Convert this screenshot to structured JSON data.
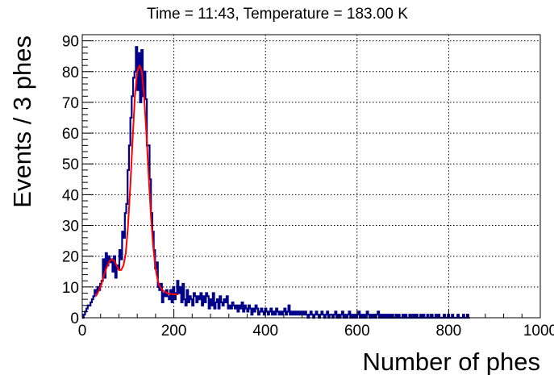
{
  "chart_data": {
    "type": "histogram",
    "title": "Time = 11:43, Temperature = 183.00 K",
    "xlabel": "Number of phes",
    "ylabel": "Events / 3 phes",
    "xlim": [
      0,
      1000
    ],
    "ylim": [
      0,
      92
    ],
    "x_ticks": [
      0,
      200,
      400,
      600,
      800,
      1000
    ],
    "x_tick_labels": [
      "0",
      "200",
      "400",
      "600",
      "800",
      "1000"
    ],
    "y_ticks": [
      0,
      10,
      20,
      30,
      40,
      50,
      60,
      70,
      80,
      90
    ],
    "y_tick_labels": [
      "0",
      "10",
      "20",
      "30",
      "40",
      "50",
      "60",
      "70",
      "80",
      "90"
    ],
    "grid": true,
    "bin_width": 3,
    "series": [
      {
        "kind": "histogram",
        "color": "#00008b",
        "bins": [
          [
            0,
            0
          ],
          [
            3,
            1
          ],
          [
            6,
            2
          ],
          [
            9,
            3
          ],
          [
            12,
            4
          ],
          [
            15,
            4
          ],
          [
            18,
            5
          ],
          [
            21,
            6
          ],
          [
            24,
            7
          ],
          [
            27,
            9
          ],
          [
            30,
            8
          ],
          [
            33,
            10
          ],
          [
            36,
            9
          ],
          [
            39,
            11
          ],
          [
            42,
            12
          ],
          [
            45,
            19
          ],
          [
            48,
            13
          ],
          [
            51,
            21
          ],
          [
            54,
            17
          ],
          [
            57,
            20
          ],
          [
            60,
            18
          ],
          [
            63,
            19
          ],
          [
            66,
            15
          ],
          [
            69,
            20
          ],
          [
            72,
            13
          ],
          [
            75,
            17
          ],
          [
            78,
            16
          ],
          [
            81,
            22
          ],
          [
            84,
            19
          ],
          [
            87,
            28
          ],
          [
            90,
            26
          ],
          [
            93,
            34
          ],
          [
            96,
            37
          ],
          [
            99,
            48
          ],
          [
            102,
            56
          ],
          [
            105,
            65
          ],
          [
            108,
            72
          ],
          [
            111,
            78
          ],
          [
            114,
            80
          ],
          [
            117,
            88
          ],
          [
            120,
            74
          ],
          [
            123,
            86
          ],
          [
            126,
            70
          ],
          [
            129,
            87
          ],
          [
            132,
            72
          ],
          [
            135,
            80
          ],
          [
            138,
            71
          ],
          [
            141,
            56
          ],
          [
            144,
            56
          ],
          [
            147,
            45
          ],
          [
            150,
            34
          ],
          [
            153,
            28
          ],
          [
            156,
            22
          ],
          [
            159,
            16
          ],
          [
            162,
            18
          ],
          [
            165,
            10
          ],
          [
            168,
            9
          ],
          [
            171,
            11
          ],
          [
            174,
            5
          ],
          [
            177,
            8
          ],
          [
            180,
            7
          ],
          [
            183,
            9
          ],
          [
            186,
            7
          ],
          [
            189,
            6
          ],
          [
            192,
            9
          ],
          [
            195,
            5
          ],
          [
            198,
            10
          ],
          [
            201,
            6
          ],
          [
            204,
            8
          ],
          [
            207,
            12
          ],
          [
            210,
            8
          ],
          [
            213,
            10
          ],
          [
            216,
            5
          ],
          [
            219,
            11
          ],
          [
            222,
            6
          ],
          [
            225,
            4
          ],
          [
            228,
            9
          ],
          [
            231,
            5
          ],
          [
            234,
            7
          ],
          [
            237,
            6
          ],
          [
            240,
            4
          ],
          [
            243,
            8
          ],
          [
            246,
            7
          ],
          [
            249,
            5
          ],
          [
            252,
            7
          ],
          [
            255,
            6
          ],
          [
            258,
            8
          ],
          [
            261,
            4
          ],
          [
            264,
            7
          ],
          [
            267,
            5
          ],
          [
            270,
            8
          ],
          [
            273,
            7
          ],
          [
            276,
            3
          ],
          [
            279,
            6
          ],
          [
            282,
            4
          ],
          [
            285,
            8
          ],
          [
            288,
            3
          ],
          [
            291,
            5
          ],
          [
            294,
            6
          ],
          [
            297,
            3
          ],
          [
            300,
            7
          ],
          [
            303,
            5
          ],
          [
            306,
            4
          ],
          [
            309,
            6
          ],
          [
            312,
            5
          ],
          [
            315,
            7
          ],
          [
            318,
            3
          ],
          [
            321,
            4
          ],
          [
            324,
            3
          ],
          [
            327,
            5
          ],
          [
            330,
            4
          ],
          [
            333,
            3
          ],
          [
            336,
            4
          ],
          [
            339,
            2
          ],
          [
            342,
            4
          ],
          [
            345,
            3
          ],
          [
            348,
            5
          ],
          [
            351,
            2
          ],
          [
            354,
            4
          ],
          [
            357,
            3
          ],
          [
            360,
            2
          ],
          [
            363,
            4
          ],
          [
            366,
            3
          ],
          [
            369,
            1
          ],
          [
            372,
            3
          ],
          [
            375,
            2
          ],
          [
            378,
            4
          ],
          [
            381,
            3
          ],
          [
            384,
            1
          ],
          [
            387,
            2
          ],
          [
            390,
            3
          ],
          [
            393,
            2
          ],
          [
            396,
            1
          ],
          [
            399,
            3
          ],
          [
            402,
            2
          ],
          [
            405,
            1
          ],
          [
            408,
            2
          ],
          [
            411,
            3
          ],
          [
            414,
            1
          ],
          [
            417,
            2
          ],
          [
            420,
            1
          ],
          [
            423,
            3
          ],
          [
            426,
            2
          ],
          [
            429,
            1
          ],
          [
            432,
            2
          ],
          [
            435,
            1
          ],
          [
            438,
            2
          ],
          [
            441,
            3
          ],
          [
            444,
            1
          ],
          [
            447,
            2
          ],
          [
            450,
            4
          ],
          [
            453,
            1
          ],
          [
            456,
            2
          ],
          [
            459,
            1
          ],
          [
            462,
            2
          ],
          [
            465,
            1
          ],
          [
            468,
            2
          ],
          [
            471,
            1
          ],
          [
            474,
            2
          ],
          [
            477,
            1
          ],
          [
            480,
            2
          ],
          [
            483,
            1
          ],
          [
            486,
            2
          ],
          [
            489,
            1
          ],
          [
            492,
            0
          ],
          [
            495,
            1
          ],
          [
            498,
            2
          ],
          [
            501,
            1
          ],
          [
            504,
            0
          ],
          [
            507,
            1
          ],
          [
            510,
            2
          ],
          [
            513,
            1
          ],
          [
            516,
            0
          ],
          [
            519,
            1
          ],
          [
            522,
            2
          ],
          [
            525,
            1
          ],
          [
            528,
            0
          ],
          [
            531,
            1
          ],
          [
            534,
            2
          ],
          [
            537,
            0
          ],
          [
            540,
            1
          ],
          [
            543,
            1
          ],
          [
            546,
            0
          ],
          [
            549,
            1
          ],
          [
            552,
            2
          ],
          [
            555,
            0
          ],
          [
            558,
            1
          ],
          [
            561,
            0
          ],
          [
            564,
            1
          ],
          [
            567,
            2
          ],
          [
            570,
            0
          ],
          [
            573,
            1
          ],
          [
            576,
            0
          ],
          [
            579,
            1
          ],
          [
            582,
            2
          ],
          [
            585,
            0
          ],
          [
            588,
            1
          ],
          [
            591,
            0
          ],
          [
            594,
            1
          ],
          [
            597,
            0
          ],
          [
            600,
            1
          ],
          [
            603,
            2
          ],
          [
            606,
            0
          ],
          [
            609,
            1
          ],
          [
            612,
            0
          ],
          [
            615,
            1
          ],
          [
            618,
            0
          ],
          [
            621,
            2
          ],
          [
            624,
            1
          ],
          [
            627,
            0
          ],
          [
            630,
            1
          ],
          [
            633,
            0
          ],
          [
            636,
            1
          ],
          [
            639,
            0
          ],
          [
            642,
            1
          ],
          [
            645,
            2
          ],
          [
            648,
            0
          ],
          [
            651,
            1
          ],
          [
            654,
            0
          ],
          [
            657,
            1
          ],
          [
            660,
            0
          ],
          [
            663,
            1
          ],
          [
            666,
            0
          ],
          [
            669,
            1
          ],
          [
            672,
            0
          ],
          [
            675,
            1
          ],
          [
            678,
            0
          ],
          [
            681,
            0
          ],
          [
            684,
            1
          ],
          [
            687,
            0
          ],
          [
            690,
            1
          ],
          [
            693,
            0
          ],
          [
            696,
            0
          ],
          [
            699,
            1
          ],
          [
            702,
            0
          ],
          [
            705,
            1
          ],
          [
            708,
            0
          ],
          [
            711,
            0
          ],
          [
            714,
            1
          ],
          [
            717,
            0
          ],
          [
            720,
            0
          ],
          [
            723,
            1
          ],
          [
            726,
            0
          ],
          [
            729,
            1
          ],
          [
            732,
            0
          ],
          [
            735,
            0
          ],
          [
            738,
            1
          ],
          [
            741,
            0
          ],
          [
            744,
            1
          ],
          [
            747,
            0
          ],
          [
            750,
            0
          ],
          [
            753,
            1
          ],
          [
            756,
            0
          ],
          [
            759,
            0
          ],
          [
            762,
            1
          ],
          [
            765,
            0
          ],
          [
            768,
            0
          ],
          [
            771,
            1
          ],
          [
            774,
            0
          ],
          [
            777,
            1
          ],
          [
            780,
            0
          ],
          [
            783,
            0
          ],
          [
            786,
            0
          ],
          [
            789,
            1
          ],
          [
            792,
            0
          ],
          [
            795,
            0
          ],
          [
            798,
            1
          ],
          [
            801,
            0
          ],
          [
            804,
            0
          ],
          [
            807,
            1
          ],
          [
            810,
            0
          ],
          [
            813,
            0
          ],
          [
            816,
            0
          ],
          [
            819,
            1
          ],
          [
            822,
            0
          ],
          [
            825,
            0
          ],
          [
            828,
            0
          ],
          [
            831,
            1
          ],
          [
            834,
            0
          ],
          [
            837,
            0
          ],
          [
            840,
            1
          ],
          [
            843,
            0
          ]
        ]
      },
      {
        "kind": "fit",
        "color": "#ff0000",
        "x": [
          30,
          35,
          40,
          45,
          50,
          55,
          60,
          65,
          70,
          75,
          80,
          85,
          90,
          95,
          100,
          105,
          110,
          115,
          120,
          125,
          130,
          135,
          140,
          145,
          150,
          155,
          160,
          165,
          170,
          175,
          180,
          185,
          190,
          195,
          200,
          205,
          210
        ],
        "y": [
          7,
          8.5,
          10,
          12.5,
          15,
          17,
          18.5,
          19,
          18.5,
          17,
          15.5,
          15.5,
          17,
          21,
          30,
          43,
          58,
          72,
          80,
          82,
          80,
          72,
          60,
          46,
          33,
          23,
          16,
          12,
          10,
          9,
          8.5,
          8,
          7.8,
          7.7,
          7.6,
          7.6,
          7.6
        ]
      }
    ]
  }
}
